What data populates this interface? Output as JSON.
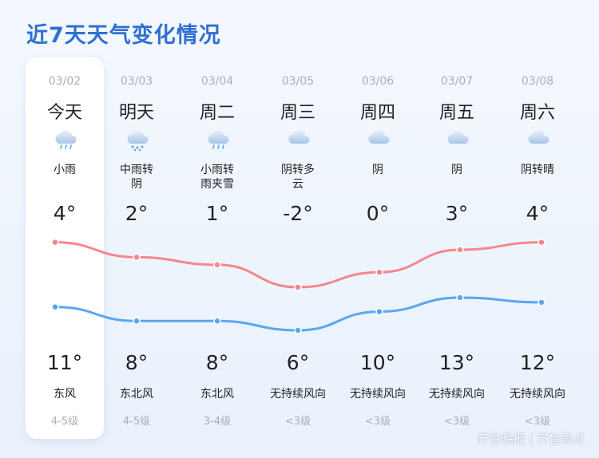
{
  "title": "近7天天气变化情况",
  "days": [
    {
      "date": "03/02",
      "label": "今天",
      "icon": "light-rain-icon",
      "condition": "小雨",
      "high": "4°",
      "low": "11°",
      "wind": "东风",
      "level": "4-5级"
    },
    {
      "date": "03/03",
      "label": "明天",
      "icon": "moderate-rain-icon",
      "condition": "中雨转阴",
      "high": "2°",
      "low": "8°",
      "wind": "东北风",
      "level": "4-5级"
    },
    {
      "date": "03/04",
      "label": "周二",
      "icon": "light-rain-icon",
      "condition": "小雨转雨夹雪",
      "high": "1°",
      "low": "8°",
      "wind": "东北风",
      "level": "3-4级"
    },
    {
      "date": "03/05",
      "label": "周三",
      "icon": "cloudy-icon",
      "condition": "阴转多云",
      "high": "-2°",
      "low": "6°",
      "wind": "无持续风向",
      "level": "<3级"
    },
    {
      "date": "03/06",
      "label": "周四",
      "icon": "cloudy-icon",
      "condition": "阴",
      "high": "0°",
      "low": "10°",
      "wind": "无持续风向",
      "level": "<3级"
    },
    {
      "date": "03/07",
      "label": "周五",
      "icon": "cloudy-icon",
      "condition": "阴",
      "high": "3°",
      "low": "13°",
      "wind": "无持续风向",
      "level": "<3级"
    },
    {
      "date": "03/08",
      "label": "周六",
      "icon": "cloudy-icon",
      "condition": "阴转晴",
      "high": "4°",
      "low": "12°",
      "wind": "无持续风向",
      "level": "<3级"
    }
  ],
  "condition_lines": [
    [
      "小雨"
    ],
    [
      "中雨转",
      "阴"
    ],
    [
      "小雨转",
      "雨夹雪"
    ],
    [
      "阴转多",
      "云"
    ],
    [
      "阴"
    ],
    [
      "阴"
    ],
    [
      "阴转晴"
    ]
  ],
  "curves": {
    "upper": {
      "color": "#f4878c",
      "values": [
        4,
        2,
        1,
        -2,
        0,
        3,
        4
      ]
    },
    "lower": {
      "color": "#5aa6f2",
      "values": [
        11,
        8,
        8,
        6,
        10,
        13,
        12
      ]
    }
  },
  "watermark": "齐鲁晚报 | 齐鲁壹点"
}
